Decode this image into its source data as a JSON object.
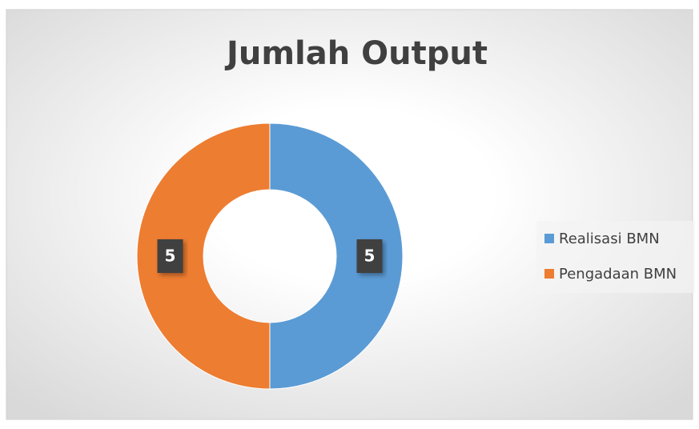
{
  "chart_data": {
    "type": "donut",
    "title": "Jumlah Output",
    "categories": [
      "Realisasi BMN",
      "Pengadaan BMN"
    ],
    "values": [
      5,
      5
    ],
    "colors": [
      "#5b9bd5",
      "#ed7d31"
    ],
    "legend": "right"
  }
}
